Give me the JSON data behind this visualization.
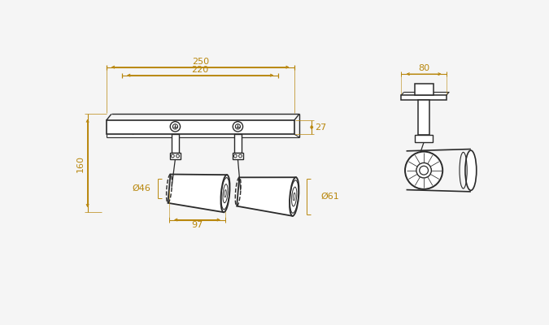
{
  "bg_color": "#f5f5f5",
  "line_color": "#2a2a2a",
  "dim_color": "#b8860b",
  "figsize": [
    6.75,
    4.0
  ],
  "dpi": 100,
  "dims": {
    "width_250": "250",
    "width_220": "220",
    "height_27": "27",
    "height_160": "160",
    "dia_46": "Ø46",
    "dia_61": "Ø61",
    "length_97": "97",
    "width_80": "80"
  }
}
